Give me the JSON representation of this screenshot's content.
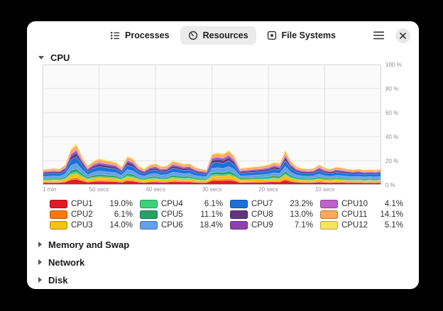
{
  "window": {
    "header": {
      "tabs": [
        {
          "label": "Processes",
          "icon": "process-list-icon",
          "active": false
        },
        {
          "label": "Resources",
          "icon": "gauge-icon",
          "active": true
        },
        {
          "label": "File Systems",
          "icon": "harddisk-icon",
          "active": false
        }
      ],
      "menu_icon": "hamburger-menu-icon",
      "close_icon": "close-icon"
    },
    "colors": {
      "canvas": "#000000",
      "surface": "#ffffff",
      "tab_active_bg": "#ebebeb",
      "grid_line": "#e1e1e1",
      "plot_bg": "#fafafa",
      "plot_border": "#d5d5d5",
      "axis_text": "#8f8f8f"
    }
  },
  "sections": {
    "cpu": {
      "label": "CPU",
      "expanded": true
    },
    "memory": {
      "label": "Memory and Swap",
      "expanded": false
    },
    "network": {
      "label": "Network",
      "expanded": false
    },
    "disk": {
      "label": "Disk",
      "expanded": false
    }
  },
  "chart_data": {
    "type": "area",
    "stacked": true,
    "title": "CPU",
    "grid": true,
    "legend_position": "bottom",
    "x_axis": {
      "span_seconds": 60,
      "tick_labels": [
        "1 min",
        "50 secs",
        "40 secs",
        "30 secs",
        "20 secs",
        "10 secs"
      ],
      "tick_seconds_from_left": [
        0,
        10,
        20,
        30,
        40,
        50
      ]
    },
    "y_axis": {
      "min": 0,
      "max": 100,
      "tick_labels": [
        "100 %",
        "80 %",
        "60 %",
        "40 %",
        "20 %",
        "0 %"
      ],
      "tick_values": [
        100,
        80,
        60,
        40,
        20,
        0
      ]
    },
    "stack_total_percent": [
      13,
      13.5,
      14,
      13.5,
      17,
      30,
      34,
      24,
      16,
      20,
      22,
      21,
      20,
      19,
      15,
      24,
      22,
      16,
      13.5,
      17,
      18,
      15.5,
      16,
      20,
      19,
      17.5,
      18,
      15,
      13.5,
      13,
      26,
      27,
      26,
      29,
      24,
      14,
      14.5,
      15,
      15.5,
      16,
      17,
      19,
      18,
      29,
      20,
      15.5,
      14,
      13.5,
      14,
      17,
      14.5,
      13.5,
      15,
      14.5,
      13.5,
      13,
      13.5,
      12.5,
      13,
      12.5,
      13.5
    ],
    "series": [
      {
        "name": "CPU1",
        "value": 19.0,
        "display": "19.0%",
        "color": "#e01b24"
      },
      {
        "name": "CPU2",
        "value": 6.1,
        "display": "6.1%",
        "color": "#ff7800"
      },
      {
        "name": "CPU3",
        "value": 14.0,
        "display": "14.0%",
        "color": "#f5c211"
      },
      {
        "name": "CPU4",
        "value": 6.1,
        "display": "6.1%",
        "color": "#3dd17a"
      },
      {
        "name": "CPU5",
        "value": 11.1,
        "display": "11.1%",
        "color": "#26a269"
      },
      {
        "name": "CPU6",
        "value": 18.4,
        "display": "18.4%",
        "color": "#62a0ea"
      },
      {
        "name": "CPU7",
        "value": 23.2,
        "display": "23.2%",
        "color": "#1c71d8"
      },
      {
        "name": "CPU8",
        "value": 13.0,
        "display": "13.0%",
        "color": "#613583"
      },
      {
        "name": "CPU9",
        "value": 7.1,
        "display": "7.1%",
        "color": "#9141ac"
      },
      {
        "name": "CPU10",
        "value": 4.1,
        "display": "4.1%",
        "color": "#c061cb"
      },
      {
        "name": "CPU11",
        "value": 14.1,
        "display": "14.1%",
        "color": "#ffa955"
      },
      {
        "name": "CPU12",
        "value": 5.1,
        "display": "5.1%",
        "color": "#f8e45c"
      }
    ]
  }
}
